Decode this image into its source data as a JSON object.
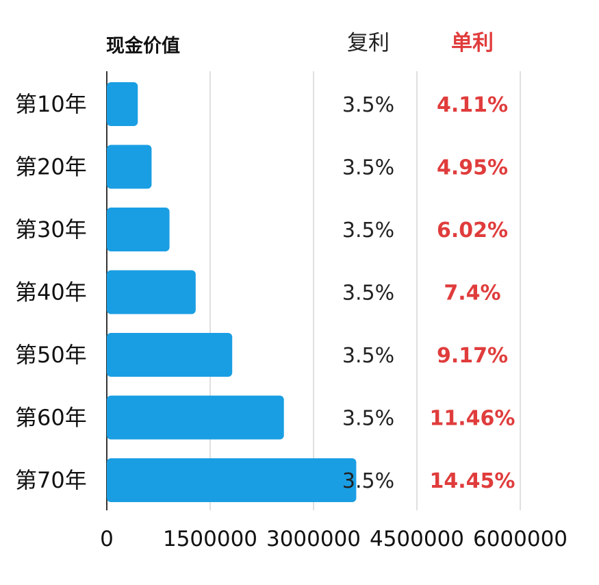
{
  "chart_data": {
    "type": "bar",
    "orientation": "horizontal",
    "title": "现金价值",
    "categories": [
      "第10年",
      "第20年",
      "第30年",
      "第40年",
      "第50年",
      "第60年",
      "第70年"
    ],
    "values": [
      450000,
      650000,
      910000,
      1290000,
      1820000,
      2570000,
      3620000
    ],
    "xlim": [
      0,
      6000000
    ],
    "x_ticks": [
      "0",
      "1500000",
      "3000000",
      "4500000",
      "6000000"
    ],
    "grid": true,
    "legend": "none",
    "bar_color": "#1a9ee3",
    "table_columns": [
      {
        "header": "复利",
        "color": "#222222",
        "values": [
          "3.5%",
          "3.5%",
          "3.5%",
          "3.5%",
          "3.5%",
          "3.5%",
          "3.5%"
        ]
      },
      {
        "header": "单利",
        "color": "#e03c3c",
        "values": [
          "4.11%",
          "4.95%",
          "6.02%",
          "7.4%",
          "9.17%",
          "11.46%",
          "14.45%"
        ]
      }
    ]
  }
}
